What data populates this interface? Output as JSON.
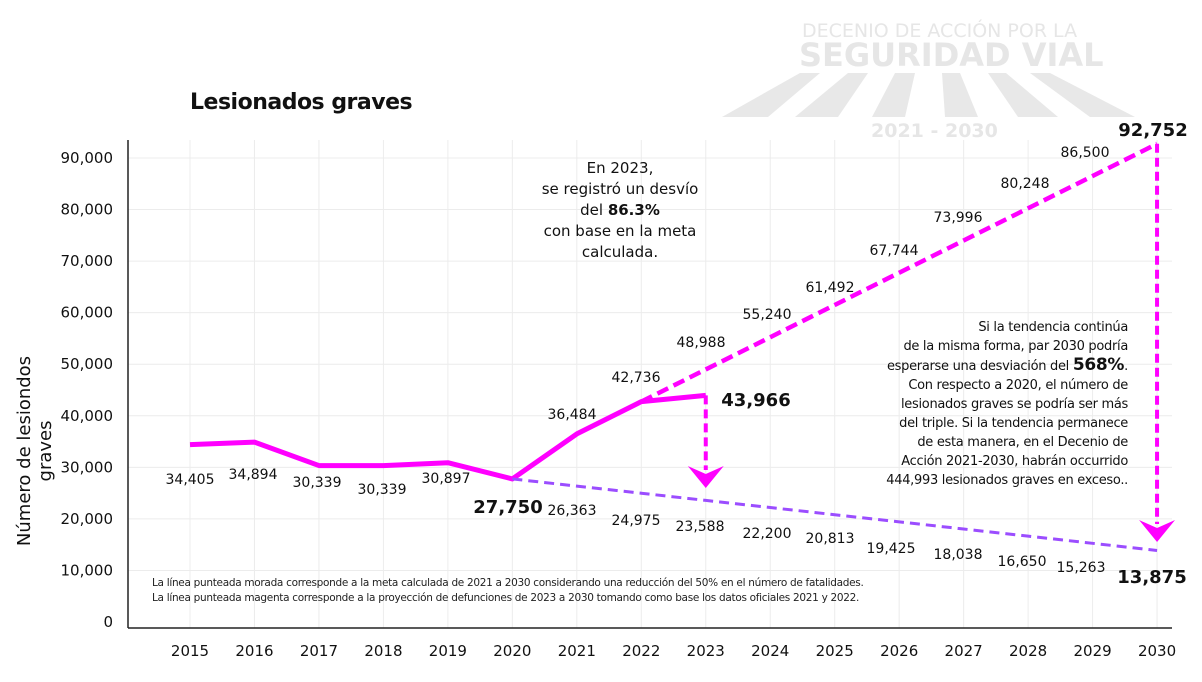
{
  "watermark": {
    "line1": "DECENIO DE ACCIÓN POR LA",
    "line2": "SEGURIDAD VIAL",
    "years": "2021 - 2030"
  },
  "chart_data": {
    "type": "line",
    "title": "Lesionados graves",
    "ylabel": "Número de lesiondos graves",
    "xlabel": "",
    "ylim": [
      0,
      90000
    ],
    "yticks": [
      "0",
      "10,000",
      "20,000",
      "30,000",
      "40,000",
      "50,000",
      "60,000",
      "70,000",
      "80,000",
      "90,000"
    ],
    "x": [
      "2015",
      "2016",
      "2017",
      "2018",
      "2019",
      "2020",
      "2021",
      "2022",
      "2023",
      "2024",
      "2025",
      "2026",
      "2027",
      "2028",
      "2029",
      "2030"
    ],
    "grid": true,
    "series": [
      {
        "style": "solid",
        "color": "#ff00ff",
        "x": [
          "2015",
          "2016",
          "2017",
          "2018",
          "2019",
          "2020",
          "2021",
          "2022",
          "2023"
        ],
        "values": [
          34405,
          34894,
          30339,
          30339,
          30897,
          27750,
          36484,
          42736,
          43966
        ],
        "labels": [
          "34,405",
          "34,894",
          "30,339",
          "30,339",
          "30,897",
          "27,750",
          "36,484",
          "42,736",
          "43,966"
        ]
      },
      {
        "style": "dashed",
        "color": "#9b4dff",
        "x": [
          "2020",
          "2021",
          "2022",
          "2023",
          "2024",
          "2025",
          "2026",
          "2027",
          "2028",
          "2029",
          "2030"
        ],
        "values": [
          27750,
          26363,
          24975,
          23588,
          22200,
          20813,
          19425,
          18038,
          16650,
          15263,
          13875
        ],
        "labels": [
          "",
          "26,363",
          "24,975",
          "23,588",
          "22,200",
          "20,813",
          "19,425",
          "18,038",
          "16,650",
          "15,263",
          "13,875"
        ]
      },
      {
        "style": "dashed",
        "color": "#ff00ff",
        "x": [
          "2022",
          "2023",
          "2024",
          "2025",
          "2026",
          "2027",
          "2028",
          "2029",
          "2030"
        ],
        "values": [
          42736,
          48988,
          55240,
          61492,
          67744,
          73996,
          80248,
          86500,
          92752
        ],
        "labels": [
          "",
          "48,988",
          "55,240",
          "61,492",
          "67,744",
          "73,996",
          "80,248",
          "86,500",
          "92,752"
        ]
      }
    ],
    "annotations": {
      "note_2023": {
        "l1": "En 2023,",
        "l2": "se registró un desvío",
        "l3a": "del ",
        "l3b": "86.3%",
        "l4": "con base en la meta",
        "l5": "calculada."
      },
      "note_2030": {
        "l1": "Si la tendencia continúa",
        "l2": "de la misma forma, par 2030 podría",
        "l3a": "esperarse una desviación del ",
        "l3b": "568%",
        "l3c": ".",
        "l4": "Con respecto a 2020, el número de",
        "l5": "lesionados graves se podría ser más",
        "l6": "del triple. Si la tendencia permanece",
        "l7": "de esta manera, en el Decenio de",
        "l8": "Acción 2021-2030, habrán occurrido",
        "l9": "444,993 lesionados graves en exceso.."
      },
      "footnote": {
        "l1": "La línea punteada morada corresponde a la meta calculada de 2021 a 2030 considerando una reducción del 50% en el número de fatalidades.",
        "l2": "La línea punteada magenta corresponde a la proyección de defunciones de 2023 a 2030 tomando como base los datos oficiales 2021 y 2022."
      }
    }
  }
}
